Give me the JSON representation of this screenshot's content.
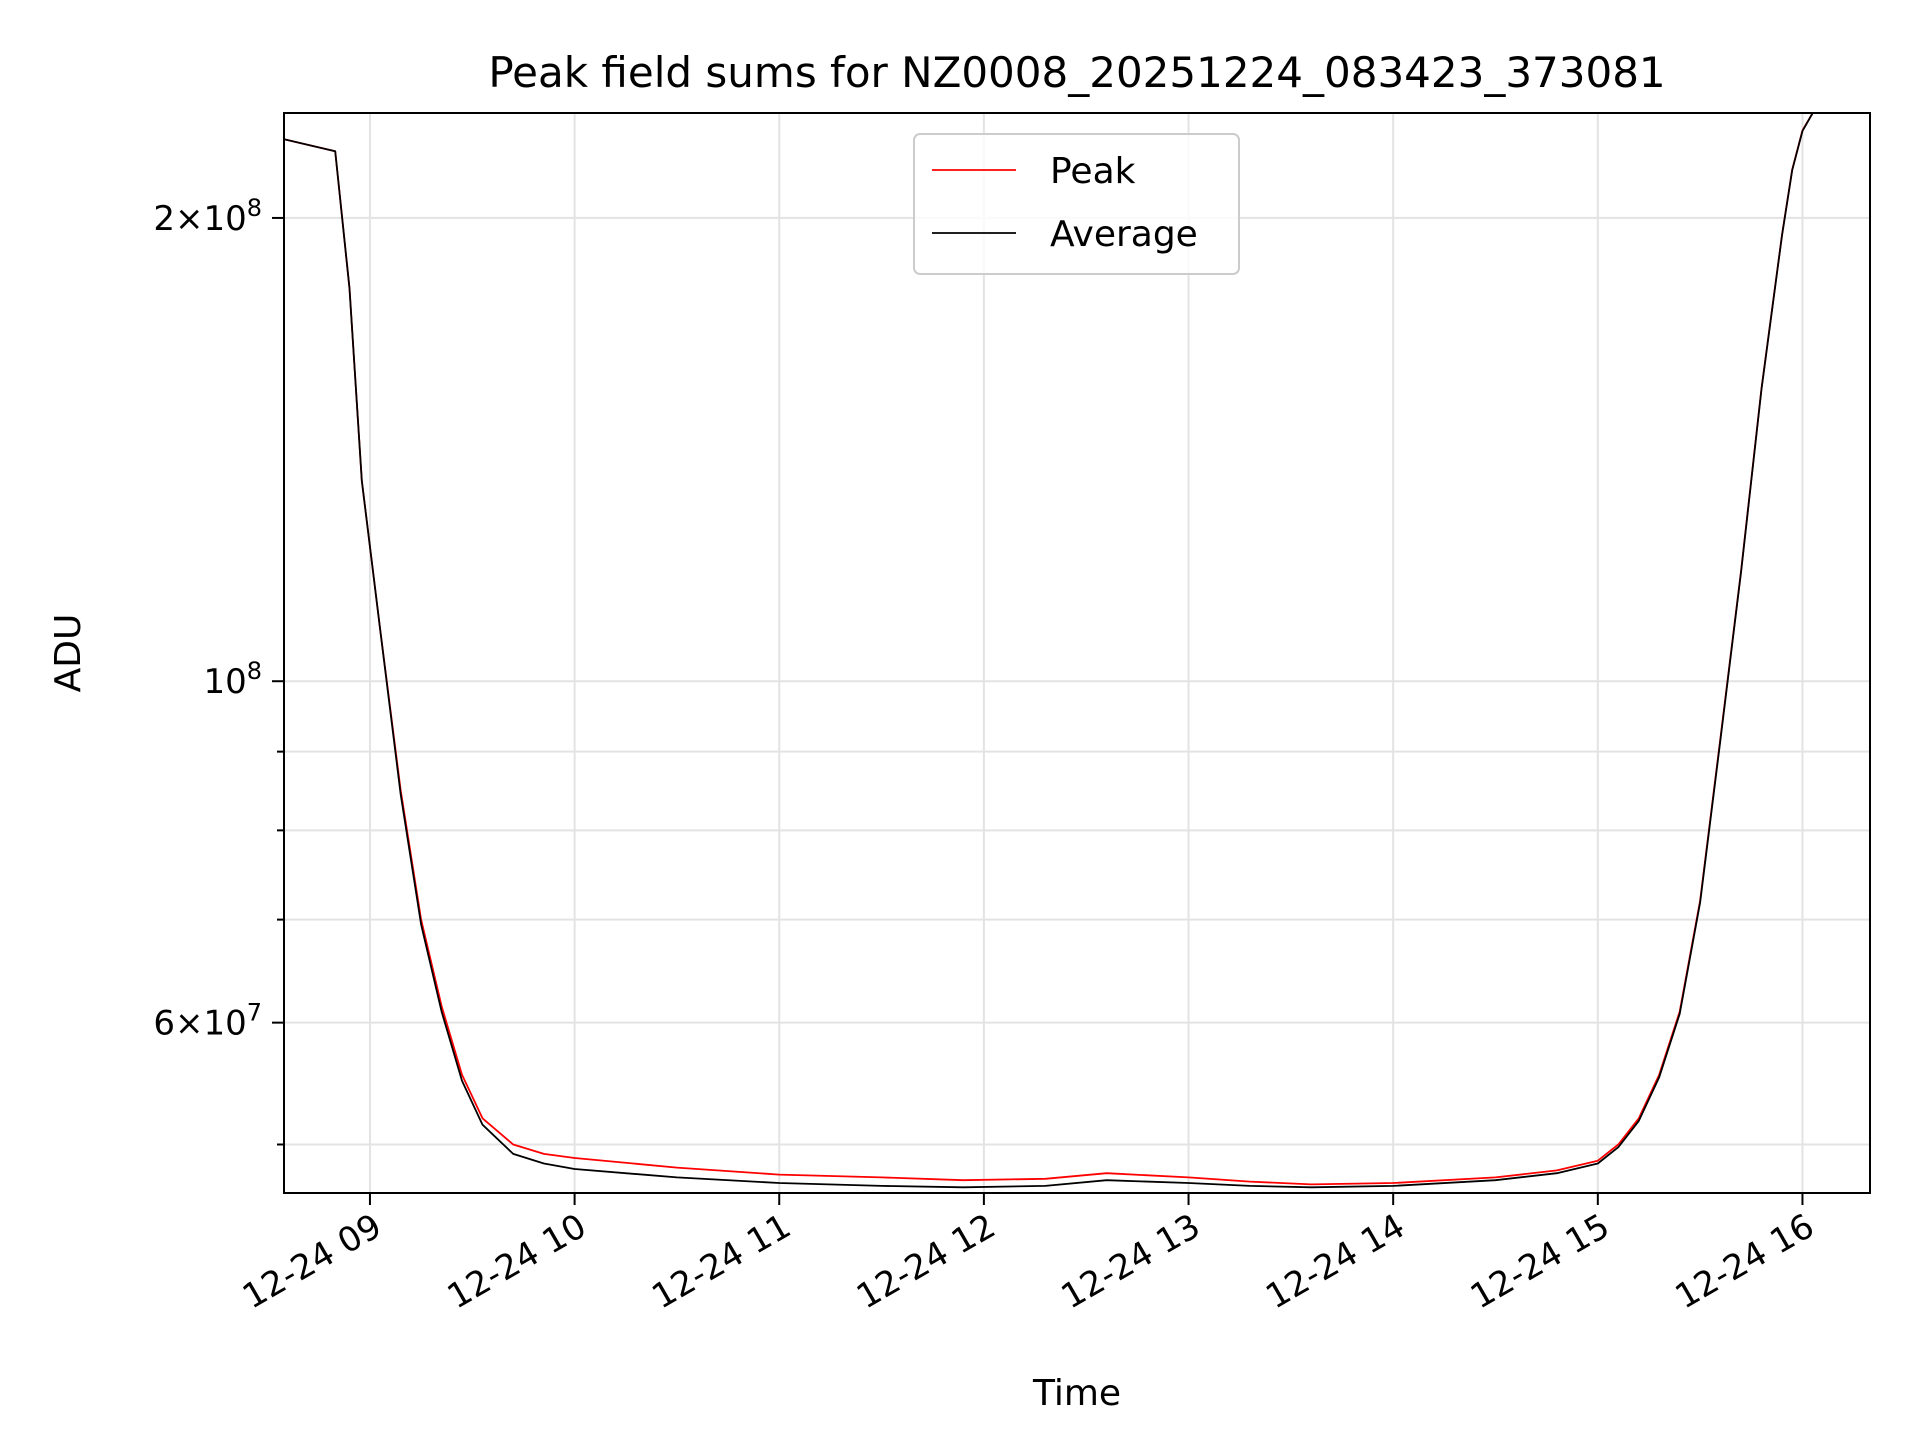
{
  "chart_data": {
    "type": "line",
    "title": "Peak field sums for NZ0008_20251224_083423_373081",
    "xlabel": "Time",
    "ylabel": "ADU",
    "yscale": "log",
    "grid": true,
    "legend_position": "top-center",
    "xlim_hours": [
      8.58,
      16.33
    ],
    "ylim": [
      46500000,
      234000000
    ],
    "x_ticks": [
      {
        "label": "12-24 09",
        "hour": 9
      },
      {
        "label": "12-24 10",
        "hour": 10
      },
      {
        "label": "12-24 11",
        "hour": 11
      },
      {
        "label": "12-24 12",
        "hour": 12
      },
      {
        "label": "12-24 13",
        "hour": 13
      },
      {
        "label": "12-24 14",
        "hour": 14
      },
      {
        "label": "12-24 15",
        "hour": 15
      },
      {
        "label": "12-24 16",
        "hour": 16
      }
    ],
    "y_ticks": [
      {
        "value": 200000000,
        "mantissa": "2",
        "exponent": "8"
      },
      {
        "value": 100000000,
        "mantissa": "",
        "exponent": "8"
      },
      {
        "value": 60000000,
        "mantissa": "6",
        "exponent": "7"
      }
    ],
    "y_minor_ticks": [
      50000000,
      70000000,
      80000000,
      90000000
    ],
    "series": [
      {
        "name": "Peak",
        "color": "#ff0000",
        "x": [
          8.58,
          8.83,
          8.9,
          8.96,
          9.05,
          9.15,
          9.25,
          9.35,
          9.45,
          9.55,
          9.7,
          9.85,
          10.0,
          10.5,
          11.0,
          11.5,
          11.9,
          12.3,
          12.6,
          13.0,
          13.3,
          13.6,
          14.0,
          14.5,
          14.8,
          15.0,
          15.1,
          15.2,
          15.3,
          15.4,
          15.5,
          15.6,
          15.7,
          15.8,
          15.9,
          15.95,
          16.0,
          16.05,
          16.33
        ],
        "y": [
          225000000,
          221000000,
          180000000,
          135000000,
          108000000,
          85000000,
          70000000,
          61500000,
          55500000,
          52000000,
          50000000,
          49300000,
          49000000,
          48300000,
          47800000,
          47600000,
          47400000,
          47500000,
          47900000,
          47600000,
          47300000,
          47100000,
          47200000,
          47600000,
          48100000,
          48800000,
          50000000,
          52000000,
          55500000,
          61000000,
          72000000,
          92000000,
          118000000,
          155000000,
          195000000,
          215000000,
          228000000,
          234000000,
          234000000
        ]
      },
      {
        "name": "Average",
        "color": "#000000",
        "x": [
          8.58,
          8.83,
          8.9,
          8.96,
          9.05,
          9.15,
          9.25,
          9.35,
          9.45,
          9.55,
          9.7,
          9.85,
          10.0,
          10.5,
          11.0,
          11.5,
          11.9,
          12.3,
          12.6,
          13.0,
          13.3,
          13.6,
          14.0,
          14.5,
          14.8,
          15.0,
          15.1,
          15.2,
          15.3,
          15.4,
          15.5,
          15.6,
          15.7,
          15.8,
          15.9,
          15.95,
          16.0,
          16.05,
          16.33
        ],
        "y": [
          225000000,
          221000000,
          180000000,
          135000000,
          108000000,
          84500000,
          69500000,
          61000000,
          55000000,
          51500000,
          49300000,
          48600000,
          48200000,
          47600000,
          47200000,
          47000000,
          46900000,
          47000000,
          47400000,
          47200000,
          47000000,
          46900000,
          47000000,
          47400000,
          47900000,
          48600000,
          49800000,
          51800000,
          55300000,
          60800000,
          71800000,
          91800000,
          117800000,
          154800000,
          194800000,
          214800000,
          227800000,
          234000000,
          234000000
        ]
      }
    ]
  }
}
